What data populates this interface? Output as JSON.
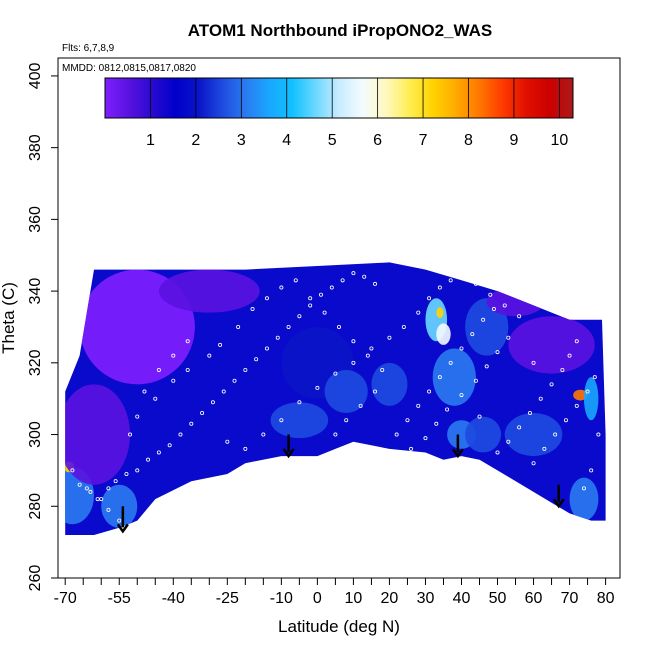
{
  "chart_data": {
    "type": "heatmap",
    "title": "ATOM1 Northbound iPropONO2_WAS",
    "subtitle_flights": "Flts: 6,7,8,9",
    "subtitle_dates": "MMDD: 0812,0815,0817,0820",
    "xlabel": "Latitude (deg N)",
    "ylabel": "Theta (C)",
    "xlim": [
      -72,
      84
    ],
    "ylim": [
      260,
      405
    ],
    "x_ticks": [
      -70,
      -55,
      -40,
      -25,
      -10,
      0,
      10,
      20,
      30,
      40,
      50,
      60,
      70,
      80
    ],
    "x_minor_ticks": [
      -65,
      -60,
      -50,
      -45,
      -35,
      -30,
      -20,
      -15,
      -5,
      5,
      15,
      25,
      35,
      45,
      55,
      65,
      75
    ],
    "y_ticks": [
      260,
      280,
      300,
      320,
      340,
      360,
      380,
      400
    ],
    "colorbar": {
      "range": [
        0,
        10.3
      ],
      "ticks": [
        1,
        2,
        3,
        4,
        5,
        6,
        7,
        8,
        9,
        10
      ],
      "colors": [
        "#7f1fff",
        "#5a12e0",
        "#2a0ad0",
        "#0000cc",
        "#0a14c8",
        "#1e4ae0",
        "#2a7aef",
        "#1aa6ff",
        "#12c0ff",
        "#6ad8ff",
        "#c8ecff",
        "#f4fbff",
        "#fff8c0",
        "#ffee55",
        "#ffd400",
        "#ffaa00",
        "#ff7700",
        "#ff3a00",
        "#e01000",
        "#cc0000",
        "#aa1a1a"
      ]
    },
    "boundary": [
      [
        -70,
        272
      ],
      [
        -62,
        272
      ],
      [
        -55,
        274
      ],
      [
        -50,
        276
      ],
      [
        -45,
        282
      ],
      [
        -35,
        287
      ],
      [
        -25,
        289
      ],
      [
        -20,
        292
      ],
      [
        -10,
        294
      ],
      [
        -5,
        294
      ],
      [
        0,
        294
      ],
      [
        5,
        296
      ],
      [
        10,
        298
      ],
      [
        20,
        296
      ],
      [
        30,
        295
      ],
      [
        35,
        293
      ],
      [
        40,
        294
      ],
      [
        45,
        293
      ],
      [
        50,
        290
      ],
      [
        60,
        284
      ],
      [
        65,
        281
      ],
      [
        70,
        278
      ],
      [
        76,
        276
      ],
      [
        80,
        276
      ],
      [
        80,
        300
      ],
      [
        79,
        332
      ],
      [
        70,
        332
      ],
      [
        60,
        336
      ],
      [
        50,
        340
      ],
      [
        40,
        343
      ],
      [
        30,
        346
      ],
      [
        20,
        348
      ],
      [
        0,
        347
      ],
      [
        -20,
        346
      ],
      [
        -35,
        346
      ],
      [
        -55,
        346
      ],
      [
        -62,
        346
      ],
      [
        -63,
        340
      ],
      [
        -66,
        322
      ],
      [
        -70,
        312
      ]
    ],
    "hotspots": [
      {
        "lat": -68,
        "theta": 283,
        "value": 3.2,
        "rx": 6,
        "ry": 8
      },
      {
        "lat": -55,
        "theta": 280,
        "value": 3.0,
        "rx": 5,
        "ry": 6
      },
      {
        "lat": -69,
        "theta": 291,
        "value": 7.0,
        "rx": 1.5,
        "ry": 1.5
      },
      {
        "lat": -62,
        "theta": 300,
        "value": 0.3,
        "rx": 10,
        "ry": 14
      },
      {
        "lat": -50,
        "theta": 330,
        "value": 0.2,
        "rx": 16,
        "ry": 16
      },
      {
        "lat": -30,
        "theta": 340,
        "value": 0.4,
        "rx": 14,
        "ry": 6
      },
      {
        "lat": 0,
        "theta": 320,
        "value": 2.2,
        "rx": 10,
        "ry": 10
      },
      {
        "lat": -5,
        "theta": 304,
        "value": 2.6,
        "rx": 8,
        "ry": 5
      },
      {
        "lat": 8,
        "theta": 312,
        "value": 2.4,
        "rx": 6,
        "ry": 6
      },
      {
        "lat": 20,
        "theta": 314,
        "value": 2.4,
        "rx": 5,
        "ry": 6
      },
      {
        "lat": 33,
        "theta": 332,
        "value": 4.6,
        "rx": 3,
        "ry": 6
      },
      {
        "lat": 35,
        "theta": 328,
        "value": 5.5,
        "rx": 2,
        "ry": 3
      },
      {
        "lat": 34,
        "theta": 334,
        "value": 7.0,
        "rx": 1,
        "ry": 1.5
      },
      {
        "lat": 38,
        "theta": 316,
        "value": 3.0,
        "rx": 6,
        "ry": 8
      },
      {
        "lat": 40,
        "theta": 300,
        "value": 3.2,
        "rx": 4,
        "ry": 4
      },
      {
        "lat": 46,
        "theta": 300,
        "value": 2.8,
        "rx": 5,
        "ry": 5
      },
      {
        "lat": 47,
        "theta": 330,
        "value": 2.6,
        "rx": 6,
        "ry": 8
      },
      {
        "lat": 60,
        "theta": 300,
        "value": 2.4,
        "rx": 8,
        "ry": 6
      },
      {
        "lat": 73,
        "theta": 311,
        "value": 8.0,
        "rx": 2,
        "ry": 1.5
      },
      {
        "lat": 76,
        "theta": 310,
        "value": 3.5,
        "rx": 2,
        "ry": 6
      },
      {
        "lat": 74,
        "theta": 282,
        "value": 3.0,
        "rx": 4,
        "ry": 6
      },
      {
        "lat": 65,
        "theta": 325,
        "value": 0.3,
        "rx": 12,
        "ry": 8
      },
      {
        "lat": 55,
        "theta": 337,
        "value": 0.5,
        "rx": 8,
        "ry": 4
      }
    ],
    "arrows": [
      {
        "lat": -54,
        "theta_top": 280,
        "theta_bottom": 273
      },
      {
        "lat": -8,
        "theta_top": 300,
        "theta_bottom": 294
      },
      {
        "lat": 39,
        "theta_top": 300,
        "theta_bottom": 294
      },
      {
        "lat": 67,
        "theta_top": 286,
        "theta_bottom": 280
      }
    ],
    "samples": [
      [
        -68,
        290
      ],
      [
        -66,
        286
      ],
      [
        -63,
        284
      ],
      [
        -60,
        282
      ],
      [
        -58,
        285
      ],
      [
        -56,
        287
      ],
      [
        -53,
        289
      ],
      [
        -50,
        290
      ],
      [
        -47,
        293
      ],
      [
        -44,
        295
      ],
      [
        -41,
        297
      ],
      [
        -38,
        300
      ],
      [
        -35,
        303
      ],
      [
        -32,
        306
      ],
      [
        -29,
        309
      ],
      [
        -26,
        312
      ],
      [
        -23,
        315
      ],
      [
        -20,
        318
      ],
      [
        -17,
        321
      ],
      [
        -14,
        324
      ],
      [
        -11,
        327
      ],
      [
        -8,
        330
      ],
      [
        -5,
        333
      ],
      [
        -2,
        336
      ],
      [
        1,
        339
      ],
      [
        4,
        341
      ],
      [
        7,
        343
      ],
      [
        10,
        345
      ],
      [
        13,
        344
      ],
      [
        16,
        342
      ],
      [
        -45,
        310
      ],
      [
        -40,
        315
      ],
      [
        -36,
        318
      ],
      [
        -30,
        322
      ],
      [
        -27,
        325
      ],
      [
        -22,
        330
      ],
      [
        -18,
        335
      ],
      [
        -14,
        338
      ],
      [
        -10,
        341
      ],
      [
        -6,
        343
      ],
      [
        -25,
        298
      ],
      [
        -20,
        296
      ],
      [
        -15,
        300
      ],
      [
        -10,
        304
      ],
      [
        -5,
        309
      ],
      [
        0,
        313
      ],
      [
        5,
        317
      ],
      [
        10,
        320
      ],
      [
        15,
        324
      ],
      [
        20,
        327
      ],
      [
        24,
        330
      ],
      [
        28,
        334
      ],
      [
        31,
        338
      ],
      [
        34,
        341
      ],
      [
        37,
        343
      ],
      [
        40,
        344
      ],
      [
        44,
        342
      ],
      [
        48,
        339
      ],
      [
        52,
        336
      ],
      [
        56,
        333
      ],
      [
        22,
        300
      ],
      [
        25,
        304
      ],
      [
        28,
        308
      ],
      [
        31,
        312
      ],
      [
        34,
        316
      ],
      [
        37,
        320
      ],
      [
        40,
        324
      ],
      [
        43,
        328
      ],
      [
        46,
        332
      ],
      [
        49,
        335
      ],
      [
        60,
        292
      ],
      [
        63,
        296
      ],
      [
        66,
        300
      ],
      [
        69,
        304
      ],
      [
        72,
        308
      ],
      [
        75,
        312
      ],
      [
        77,
        316
      ],
      [
        78,
        300
      ],
      [
        76,
        290
      ],
      [
        74,
        285
      ],
      [
        -55,
        276
      ],
      [
        -58,
        279
      ],
      [
        -61,
        282
      ],
      [
        -64,
        285
      ],
      [
        -52,
        300
      ],
      [
        -50,
        305
      ],
      [
        -48,
        312
      ],
      [
        -44,
        318
      ],
      [
        -40,
        322
      ],
      [
        -36,
        326
      ],
      [
        5,
        300
      ],
      [
        8,
        304
      ],
      [
        12,
        308
      ],
      [
        16,
        312
      ],
      [
        18,
        318
      ],
      [
        14,
        322
      ],
      [
        10,
        326
      ],
      [
        6,
        330
      ],
      [
        2,
        334
      ],
      [
        -2,
        338
      ],
      [
        50,
        295
      ],
      [
        53,
        298
      ],
      [
        56,
        302
      ],
      [
        59,
        306
      ],
      [
        62,
        310
      ],
      [
        65,
        314
      ],
      [
        68,
        318
      ],
      [
        70,
        322
      ],
      [
        72,
        326
      ],
      [
        60,
        320
      ],
      [
        26,
        296
      ],
      [
        30,
        299
      ],
      [
        33,
        303
      ],
      [
        36,
        307
      ],
      [
        40,
        311
      ],
      [
        44,
        315
      ],
      [
        47,
        319
      ],
      [
        50,
        323
      ],
      [
        53,
        327
      ],
      [
        45,
        305
      ]
    ]
  }
}
